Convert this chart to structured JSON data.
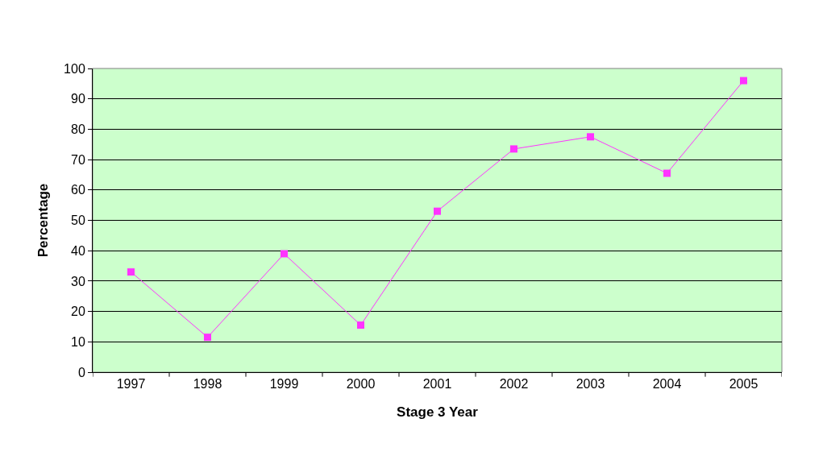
{
  "chart_data": {
    "type": "line",
    "xlabel": "Stage 3 Year",
    "ylabel": "Percentage",
    "categories": [
      "1997",
      "1998",
      "1999",
      "2000",
      "2001",
      "2002",
      "2003",
      "2004",
      "2005"
    ],
    "series": [
      {
        "color": "#ff33ff",
        "values": [
          33,
          11.5,
          39,
          15.5,
          53,
          73.5,
          77.5,
          65.5,
          96
        ]
      }
    ],
    "ylim": [
      0,
      100
    ],
    "yticks": [
      0,
      10,
      20,
      30,
      40,
      50,
      60,
      70,
      80,
      90,
      100
    ],
    "grid": "y",
    "marker": "square",
    "line_style": "solid"
  }
}
